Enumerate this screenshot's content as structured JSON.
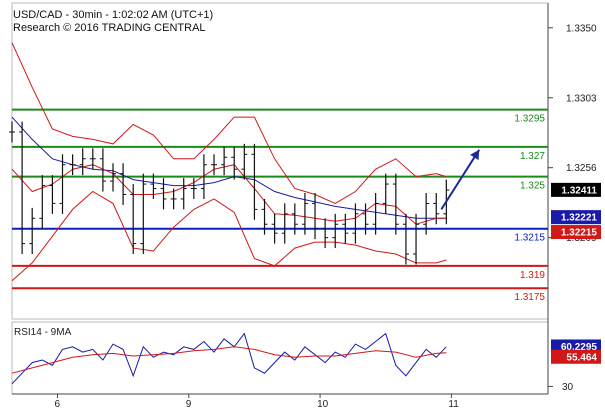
{
  "header": {
    "symbol_line": "USD/CAD - 30min - 1:02:02 AM (UTC+1)",
    "copyright_line": "Research © 2016 TRADING CENTRAL"
  },
  "chart_data": [
    {
      "type": "line",
      "title": "USD/CAD - 30min - 1:02:02 AM (UTC+1)",
      "ylim": [
        1.3155,
        1.3366
      ],
      "y_ticks": [
        1.335,
        1.3303,
        1.3256,
        1.3209
      ],
      "y_tick_labels": [
        "1.3350",
        "1.3303",
        "1.3256",
        "1.3209"
      ],
      "x_ticks": [
        {
          "label": "6",
          "at": 18
        },
        {
          "label": "9",
          "at": 70
        },
        {
          "label": "10",
          "at": 122
        },
        {
          "label": "11",
          "at": 174
        }
      ],
      "x_range": [
        0,
        198
      ],
      "grid": true,
      "current_price": {
        "label": "1.32411",
        "value": 1.32411,
        "color": "#000000"
      },
      "ma_price": {
        "label": "1.32221",
        "value": 1.32221,
        "color": "#1a1aa8"
      },
      "ma_price2": {
        "label": "1.32215",
        "value": 1.32215,
        "color": "#d01818"
      },
      "levels": [
        {
          "label": "1.3295",
          "value": 1.3295,
          "color": "#1a8a1a",
          "type": "resistance"
        },
        {
          "label": "1.327",
          "value": 1.327,
          "color": "#1a8a1a",
          "type": "resistance"
        },
        {
          "label": "1.325",
          "value": 1.325,
          "color": "#1a8a1a",
          "type": "resistance"
        },
        {
          "label": "1.3215",
          "value": 1.3215,
          "color": "#0a1fbf",
          "type": "pivot"
        },
        {
          "label": "1.319",
          "value": 1.319,
          "color": "#d01818",
          "type": "support"
        },
        {
          "label": "1.3175",
          "value": 1.3175,
          "color": "#d01818",
          "type": "support"
        }
      ],
      "arrow": {
        "from": [
          170,
          1.3228
        ],
        "to": [
          185,
          1.3268
        ],
        "color": "#1a2a9a"
      },
      "price_series": {
        "x": [
          0,
          4,
          8,
          12,
          16,
          20,
          24,
          28,
          32,
          36,
          40,
          44,
          48,
          52,
          56,
          60,
          64,
          68,
          72,
          76,
          80,
          84,
          88,
          92,
          96,
          100,
          104,
          108,
          112,
          116,
          120,
          124,
          128,
          132,
          136,
          140,
          144,
          148,
          152,
          156,
          160,
          164,
          168,
          172
        ],
        "y": [
          1.328,
          1.3205,
          1.3222,
          1.3244,
          1.3232,
          1.3258,
          1.3258,
          1.3262,
          1.3262,
          1.3247,
          1.3252,
          1.3238,
          1.3205,
          1.3245,
          1.3242,
          1.3235,
          1.3235,
          1.3242,
          1.3242,
          1.3258,
          1.3258,
          1.3263,
          1.3255,
          1.3265,
          1.3228,
          1.3218,
          1.3212,
          1.3225,
          1.3218,
          1.3232,
          1.3215,
          1.3209,
          1.3218,
          1.3212,
          1.3225,
          1.3218,
          1.3232,
          1.3245,
          1.3218,
          1.3198,
          1.3218,
          1.3232,
          1.3225,
          1.3241
        ]
      },
      "series": [
        {
          "name": "",
          "color": "#1a1aa8",
          "x": [
            0,
            8,
            16,
            24,
            32,
            40,
            48,
            56,
            64,
            72,
            80,
            88,
            96,
            104,
            112,
            120,
            128,
            136,
            144,
            152,
            160,
            168,
            172
          ],
          "values": [
            1.329,
            1.3275,
            1.3262,
            1.3258,
            1.3255,
            1.3254,
            1.3248,
            1.3246,
            1.3244,
            1.3244,
            1.3246,
            1.325,
            1.3248,
            1.324,
            1.3236,
            1.3233,
            1.323,
            1.3228,
            1.3226,
            1.3224,
            1.3222,
            1.3222,
            1.3222
          ]
        },
        {
          "name": "",
          "color": "#d01818",
          "x": [
            0,
            8,
            16,
            24,
            32,
            40,
            48,
            56,
            64,
            72,
            80,
            88,
            96,
            104,
            112,
            120,
            128,
            136,
            144,
            152,
            160,
            168,
            172
          ],
          "values": [
            1.3255,
            1.324,
            1.3245,
            1.3255,
            1.3258,
            1.3252,
            1.3238,
            1.3238,
            1.324,
            1.3246,
            1.3255,
            1.3258,
            1.3242,
            1.3225,
            1.3224,
            1.3222,
            1.322,
            1.3222,
            1.3232,
            1.323,
            1.3218,
            1.3222,
            1.3222
          ]
        },
        {
          "name": "",
          "color": "#d01818",
          "x": [
            0,
            8,
            16,
            24,
            32,
            40,
            48,
            56,
            64,
            72,
            80,
            88,
            96,
            104,
            112,
            120,
            128,
            136,
            144,
            152,
            160,
            168,
            172
          ],
          "values": [
            1.334,
            1.331,
            1.3282,
            1.3277,
            1.3275,
            1.3272,
            1.3285,
            1.3278,
            1.3262,
            1.3262,
            1.3275,
            1.329,
            1.329,
            1.3262,
            1.3242,
            1.3238,
            1.3232,
            1.324,
            1.3255,
            1.3262,
            1.325,
            1.3252,
            1.325
          ]
        },
        {
          "name": "",
          "color": "#d01818",
          "x": [
            0,
            8,
            16,
            24,
            32,
            40,
            48,
            56,
            64,
            72,
            80,
            88,
            96,
            104,
            112,
            120,
            128,
            136,
            144,
            152,
            160,
            168,
            172
          ],
          "values": [
            1.318,
            1.3192,
            1.321,
            1.3228,
            1.324,
            1.3232,
            1.3202,
            1.32,
            1.3216,
            1.3228,
            1.3235,
            1.3226,
            1.3195,
            1.319,
            1.3202,
            1.3206,
            1.3206,
            1.3204,
            1.32,
            1.3198,
            1.3192,
            1.3192,
            1.3194
          ]
        }
      ]
    },
    {
      "type": "line",
      "title": "RSI14 - 9MA",
      "ylim": [
        25,
        78
      ],
      "y_ticks": [
        30
      ],
      "y_tick_labels": [
        "30"
      ],
      "x_range": [
        0,
        198
      ],
      "current_rsi": {
        "label": "60.2295",
        "value": 60.2295,
        "color": "#1a1aa8"
      },
      "current_ma": {
        "label": "55.464",
        "value": 55.464,
        "color": "#d01818"
      },
      "series": [
        {
          "name": "RSI14",
          "color": "#1a1aa8",
          "x": [
            0,
            4,
            8,
            12,
            16,
            20,
            24,
            28,
            32,
            36,
            40,
            44,
            48,
            52,
            56,
            60,
            64,
            68,
            72,
            76,
            80,
            84,
            88,
            92,
            96,
            100,
            104,
            108,
            112,
            116,
            120,
            124,
            128,
            132,
            136,
            140,
            144,
            148,
            152,
            156,
            160,
            164,
            168,
            172
          ],
          "values": [
            32,
            40,
            48,
            50,
            46,
            58,
            60,
            56,
            58,
            50,
            62,
            58,
            38,
            60,
            52,
            56,
            54,
            60,
            58,
            64,
            56,
            66,
            60,
            70,
            44,
            40,
            48,
            56,
            50,
            60,
            54,
            48,
            56,
            52,
            62,
            58,
            64,
            70,
            46,
            38,
            48,
            58,
            52,
            60
          ]
        },
        {
          "name": "9MA",
          "color": "#d01818",
          "x": [
            0,
            8,
            16,
            24,
            32,
            40,
            48,
            56,
            64,
            72,
            80,
            88,
            96,
            104,
            112,
            120,
            128,
            136,
            144,
            152,
            160,
            168,
            172
          ],
          "values": [
            40,
            44,
            48,
            52,
            54,
            55,
            53,
            54,
            55,
            57,
            58,
            60,
            58,
            54,
            52,
            53,
            53,
            55,
            57,
            56,
            52,
            55,
            55.5
          ]
        }
      ]
    }
  ]
}
